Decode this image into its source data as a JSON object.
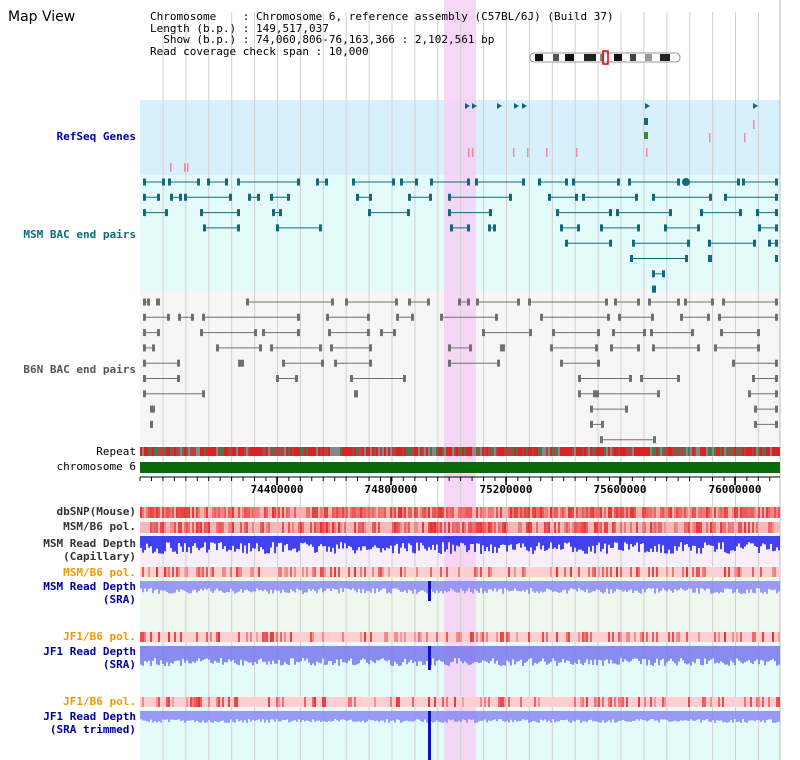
{
  "page": {
    "title": "Map View"
  },
  "info": {
    "chromosome_label": "Chromosome",
    "chromosome_value": "Chromosome 6, reference assembly (C57BL/6J) (Build 37)",
    "length_label": "Length (b.p.)",
    "length_value": "149,517,037",
    "show_label": "Show (b.p.)",
    "show_value": "74,060,806-76,163,366 : 2,102,561 bp",
    "span_label": "Read coverage check span",
    "span_value": "10,000"
  },
  "tracks": {
    "refseq": "RefSeq Genes",
    "msm_bac": "MSM BAC end pairs",
    "b6n_bac": "B6N BAC end pairs",
    "repeat": "Repeat",
    "chromosome": "chromosome 6",
    "dbsnp": "dbSNP(Mouse)",
    "msm_pol": "MSM/B6 pol.",
    "msm_depth_cap_1": "MSM Read Depth",
    "msm_depth_cap_2": "(Capillary)",
    "msm_pol_sra": "MSM/B6 pol.",
    "msm_depth_sra_1": "MSM Read Depth",
    "msm_depth_sra_2": "(SRA)",
    "jf1_pol_1": "JF1/B6 pol.",
    "jf1_depth_1": "JF1 Read Depth",
    "jf1_depth_sra": "(SRA)",
    "jf1_pol_2": "JF1/B6 pol.",
    "jf1_depth_2": "JF1 Read Depth",
    "jf1_depth_trim": "(SRA trimmed)"
  },
  "axis": {
    "ticks": [
      "74400000",
      "74800000",
      "75200000",
      "75600000",
      "76000000"
    ]
  },
  "colors": {
    "refseq_bg": "#d8f0fb",
    "msm_bg": "#e4fbfb",
    "b6n_bg": "#f6f6f6",
    "highlight": "#f6d0f4",
    "msm_feature": "#13677f",
    "b6n_feature": "#707070",
    "chromosome_bar": "#0a6a0a",
    "snp": "#e83232",
    "depth": "#2828ee",
    "label_blue": "#000099",
    "label_orange": "#ee9900",
    "label_teal": "#0b6b80"
  }
}
